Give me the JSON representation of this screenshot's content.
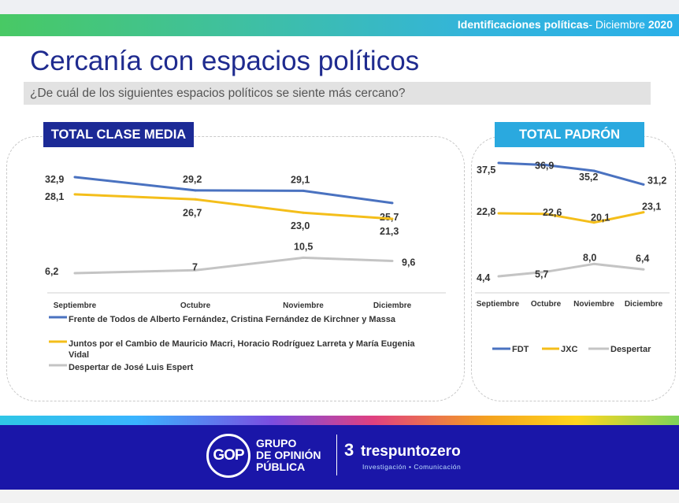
{
  "header": {
    "label": "Identificaciones políticas",
    "period_prefix": "- Diciembre ",
    "year": "2020"
  },
  "title": "Cercanía con espacios políticos",
  "question": "¿De cuál de los siguientes espacios políticos se siente más cercano?",
  "left_panel": {
    "tag": "TOTAL CLASE MEDIA"
  },
  "right_panel": {
    "tag": "TOTAL PADRÓN"
  },
  "colors": {
    "blue": "#4a72c0",
    "yellow": "#f4be1a",
    "gray": "#c4c4c4",
    "navy": "#1c2a96",
    "cyan": "#2aa9df"
  },
  "chart_data": [
    {
      "type": "line",
      "title": "TOTAL CLASE MEDIA",
      "categories": [
        "Septiembre",
        "Octubre",
        "Noviembre",
        "Diciembre"
      ],
      "series": [
        {
          "name": "Frente de Todos de Alberto Fernández, Cristina Fernández de Kirchner y Massa",
          "color": "#4a72c0",
          "values": [
            32.9,
            29.2,
            29.1,
            25.7
          ],
          "labels": [
            "32,9",
            "29,2",
            "29,1",
            "25,7"
          ]
        },
        {
          "name": "Juntos por el Cambio de Mauricio Macri, Horacio Rodríguez Larreta y María Eugenia Vidal",
          "color": "#f4be1a",
          "values": [
            28.1,
            26.7,
            23.0,
            21.3
          ],
          "labels": [
            "28,1",
            "26,7",
            "23,0",
            "21,3"
          ]
        },
        {
          "name": "Despertar de José Luis Espert",
          "color": "#c4c4c4",
          "values": [
            6.2,
            7,
            10.5,
            9.6
          ],
          "labels": [
            "6,2",
            "7",
            "10,5",
            "9,6"
          ]
        }
      ],
      "legend": "bottom"
    },
    {
      "type": "line",
      "title": "TOTAL PADRÓN",
      "categories": [
        "Septiembre",
        "Octubre",
        "Noviembre",
        "Diciembre"
      ],
      "series": [
        {
          "name": "FDT",
          "color": "#4a72c0",
          "values": [
            37.5,
            36.9,
            35.2,
            31.2
          ],
          "labels": [
            "37,5",
            "36,9",
            "35,2",
            "31,2"
          ]
        },
        {
          "name": "JXC",
          "color": "#f4be1a",
          "values": [
            22.8,
            22.6,
            20.1,
            23.1
          ],
          "labels": [
            "22,8",
            "22,6",
            "20,1",
            "23,1"
          ]
        },
        {
          "name": "Despertar",
          "color": "#c4c4c4",
          "values": [
            4.4,
            5.7,
            8.0,
            6.4
          ],
          "labels": [
            "4,4",
            "5,7",
            "8,0",
            "6,4"
          ]
        }
      ],
      "legend": "bottom"
    }
  ],
  "footer": {
    "gop_mark": "GOP",
    "gop_line1": "GRUPO",
    "gop_line2": "DE OPINIÓN",
    "gop_line3": "PÚBLICA",
    "tpz_mark": "3",
    "tpz_name": "trespuntozero",
    "tpz_sub": "Investigación • Comunicación"
  }
}
